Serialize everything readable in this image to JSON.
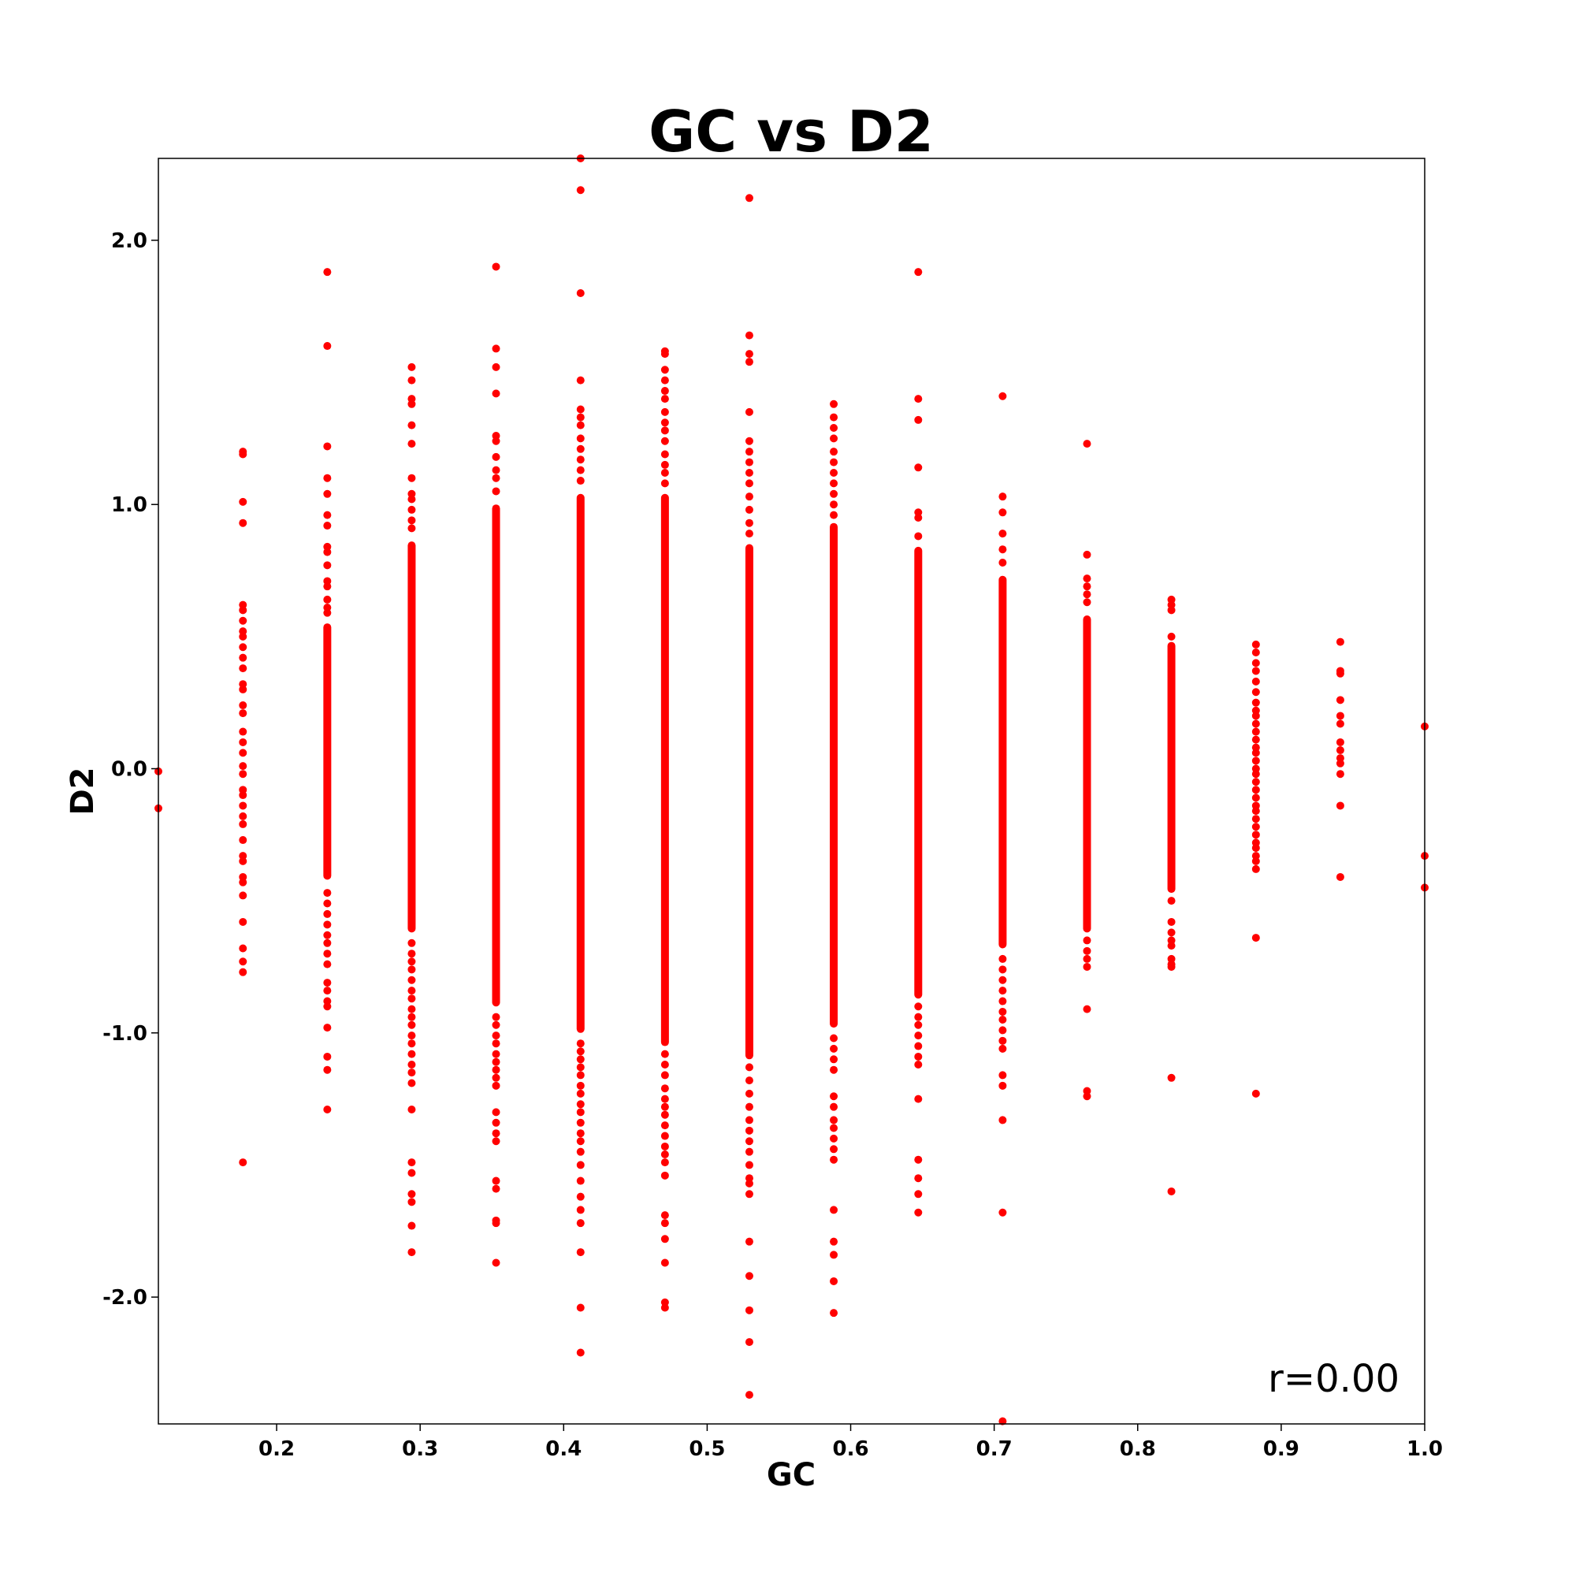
{
  "chart_data": {
    "type": "scatter",
    "title": "GC vs D2",
    "xlabel": "GC",
    "ylabel": "D2",
    "xlim": [
      0.1176,
      1.0
    ],
    "ylim": [
      -2.48,
      2.31
    ],
    "x_ticks": [
      0.2,
      0.3,
      0.4,
      0.5,
      0.6,
      0.7,
      0.8,
      0.9,
      1.0
    ],
    "x_tick_labels": [
      "0.2",
      "0.3",
      "0.4",
      "0.5",
      "0.6",
      "0.7",
      "0.8",
      "0.9",
      "1.0"
    ],
    "y_ticks": [
      2.0,
      1.0,
      0.0,
      -1.0,
      -2.0
    ],
    "y_tick_labels": [
      "2.0",
      "1.0",
      "0.0",
      "-1.0",
      "-2.0"
    ],
    "grid": false,
    "marker_color": "#ff0000",
    "annotation": "r=0.00",
    "series": [
      {
        "columns": [
          {
            "x": 0.1176,
            "dense": [],
            "points": [
              -0.01,
              -0.15
            ]
          },
          {
            "x": 0.1765,
            "dense": [],
            "points": [
              1.2,
              1.19,
              1.01,
              0.93,
              0.62,
              0.6,
              0.56,
              0.52,
              0.5,
              0.46,
              0.42,
              0.38,
              0.32,
              0.3,
              0.24,
              0.21,
              0.14,
              0.1,
              0.06,
              0.01,
              -0.02,
              -0.08,
              -0.1,
              -0.14,
              -0.18,
              -0.21,
              -0.27,
              -0.33,
              -0.35,
              -0.41,
              -0.43,
              -0.48,
              -0.58,
              -0.68,
              -0.73,
              -0.77,
              -1.49
            ]
          },
          {
            "x": 0.2353,
            "dense": [
              -0.42,
              0.55
            ],
            "points": [
              1.88,
              1.6,
              1.22,
              1.1,
              1.04,
              0.96,
              0.92,
              0.84,
              0.82,
              0.77,
              0.71,
              0.69,
              0.64,
              0.61,
              0.59,
              -0.47,
              -0.51,
              -0.55,
              -0.59,
              -0.63,
              -0.66,
              -0.7,
              -0.74,
              -0.81,
              -0.84,
              -0.88,
              -0.9,
              -0.98,
              -1.09,
              -1.14,
              -1.29
            ]
          },
          {
            "x": 0.2941,
            "dense": [
              -0.62,
              0.86
            ],
            "points": [
              1.52,
              1.47,
              1.4,
              1.38,
              1.3,
              1.23,
              1.1,
              1.04,
              1.02,
              0.98,
              0.94,
              0.91,
              -0.66,
              -0.7,
              -0.73,
              -0.76,
              -0.8,
              -0.84,
              -0.87,
              -0.91,
              -0.94,
              -0.97,
              -1.01,
              -1.04,
              -1.08,
              -1.12,
              -1.15,
              -1.19,
              -1.29,
              -1.49,
              -1.53,
              -1.61,
              -1.64,
              -1.73,
              -1.83
            ]
          },
          {
            "x": 0.3529,
            "dense": [
              -0.9,
              1.0
            ],
            "points": [
              1.9,
              1.59,
              1.52,
              1.42,
              1.26,
              1.24,
              1.18,
              1.13,
              1.1,
              1.05,
              -0.94,
              -0.97,
              -1.01,
              -1.04,
              -1.08,
              -1.11,
              -1.14,
              -1.17,
              -1.2,
              -1.3,
              -1.34,
              -1.38,
              -1.41,
              -1.56,
              -1.59,
              -1.71,
              -1.72,
              -1.87
            ]
          },
          {
            "x": 0.4118,
            "dense": [
              -1.0,
              1.04
            ],
            "points": [
              2.31,
              2.19,
              1.8,
              1.47,
              1.36,
              1.33,
              1.3,
              1.25,
              1.21,
              1.17,
              1.13,
              1.09,
              -1.04,
              -1.07,
              -1.1,
              -1.13,
              -1.16,
              -1.2,
              -1.23,
              -1.27,
              -1.3,
              -1.34,
              -1.38,
              -1.41,
              -1.45,
              -1.5,
              -1.56,
              -1.62,
              -1.67,
              -1.72,
              -1.83,
              -2.04,
              -2.21
            ]
          },
          {
            "x": 0.4706,
            "dense": [
              -1.05,
              1.04
            ],
            "points": [
              1.58,
              1.57,
              1.51,
              1.47,
              1.43,
              1.4,
              1.35,
              1.31,
              1.28,
              1.24,
              1.19,
              1.15,
              1.12,
              1.08,
              -1.08,
              -1.12,
              -1.16,
              -1.21,
              -1.25,
              -1.28,
              -1.31,
              -1.35,
              -1.39,
              -1.43,
              -1.46,
              -1.49,
              -1.54,
              -1.69,
              -1.72,
              -1.78,
              -1.87,
              -2.02,
              -2.04
            ]
          },
          {
            "x": 0.5294,
            "dense": [
              -1.1,
              0.85
            ],
            "points": [
              2.16,
              1.64,
              1.57,
              1.54,
              1.35,
              1.24,
              1.2,
              1.16,
              1.12,
              1.08,
              1.03,
              0.98,
              0.93,
              0.89,
              -1.13,
              -1.18,
              -1.23,
              -1.28,
              -1.33,
              -1.37,
              -1.41,
              -1.45,
              -1.5,
              -1.55,
              -1.57,
              -1.61,
              -1.79,
              -1.92,
              -2.05,
              -2.17,
              -2.37
            ]
          },
          {
            "x": 0.5882,
            "dense": [
              -0.98,
              0.93
            ],
            "points": [
              1.38,
              1.33,
              1.29,
              1.25,
              1.2,
              1.16,
              1.12,
              1.08,
              1.04,
              1.0,
              0.96,
              -1.02,
              -1.06,
              -1.1,
              -1.14,
              -1.24,
              -1.28,
              -1.33,
              -1.36,
              -1.4,
              -1.44,
              -1.48,
              -1.67,
              -1.79,
              -1.84,
              -1.94,
              -2.06
            ]
          },
          {
            "x": 0.6471,
            "dense": [
              -0.87,
              0.84
            ],
            "points": [
              1.88,
              1.4,
              1.32,
              1.14,
              0.97,
              0.95,
              0.88,
              -0.9,
              -0.94,
              -0.97,
              -1.01,
              -1.05,
              -1.09,
              -1.12,
              -1.25,
              -1.48,
              -1.55,
              -1.61,
              -1.68
            ]
          },
          {
            "x": 0.7059,
            "dense": [
              -0.68,
              0.73
            ],
            "points": [
              1.41,
              1.03,
              0.97,
              0.89,
              0.83,
              0.78,
              -0.72,
              -0.76,
              -0.8,
              -0.84,
              -0.88,
              -0.92,
              -0.95,
              -0.99,
              -1.03,
              -1.06,
              -1.16,
              -1.2,
              -1.33,
              -1.68,
              -2.47
            ]
          },
          {
            "x": 0.7647,
            "dense": [
              -0.62,
              0.58
            ],
            "points": [
              1.23,
              0.81,
              0.72,
              0.69,
              0.66,
              0.63,
              -0.65,
              -0.69,
              -0.72,
              -0.75,
              -0.91,
              -1.22,
              -1.24
            ]
          },
          {
            "x": 0.8235,
            "dense": [
              -0.47,
              0.48
            ],
            "points": [
              0.64,
              0.62,
              0.6,
              0.5,
              -0.5,
              -0.58,
              -0.62,
              -0.65,
              -0.67,
              -0.72,
              -0.74,
              -0.75,
              -1.17,
              -1.6
            ]
          },
          {
            "x": 0.8824,
            "dense": [],
            "points": [
              0.47,
              0.44,
              0.4,
              0.37,
              0.33,
              0.29,
              0.25,
              0.22,
              0.2,
              0.17,
              0.14,
              0.11,
              0.08,
              0.06,
              0.03,
              0.0,
              -0.02,
              -0.05,
              -0.08,
              -0.11,
              -0.14,
              -0.16,
              -0.19,
              -0.22,
              -0.25,
              -0.28,
              -0.3,
              -0.33,
              -0.35,
              -0.38,
              -0.64,
              -1.23
            ]
          },
          {
            "x": 0.9412,
            "dense": [],
            "points": [
              0.48,
              0.37,
              0.36,
              0.26,
              0.2,
              0.17,
              0.1,
              0.07,
              0.04,
              0.02,
              -0.02,
              -0.14,
              -0.41
            ]
          },
          {
            "x": 1.0,
            "dense": [],
            "points": [
              0.16,
              -0.33,
              -0.45
            ]
          }
        ]
      }
    ]
  }
}
